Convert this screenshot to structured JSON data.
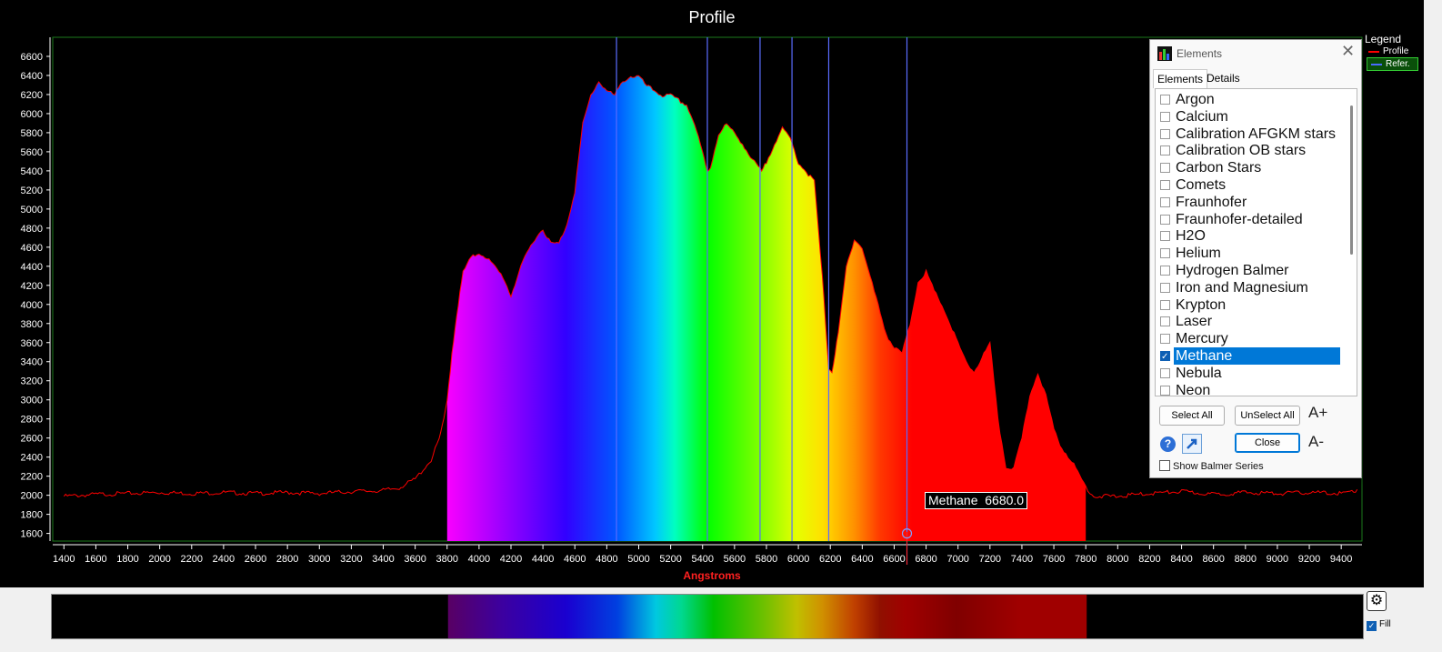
{
  "chart_data": {
    "type": "area",
    "title": "Profile",
    "xlabel": "Angstroms",
    "ylabel": "",
    "xlim": [
      1330,
      9530
    ],
    "ylim": [
      1520,
      6800
    ],
    "x_ticks": [
      1400,
      1600,
      1800,
      2000,
      2200,
      2400,
      2600,
      2800,
      3000,
      3200,
      3400,
      3600,
      3800,
      4000,
      4200,
      4400,
      4600,
      4800,
      5000,
      5200,
      5400,
      5600,
      5800,
      6000,
      6200,
      6400,
      6600,
      6800,
      7000,
      7200,
      7400,
      7600,
      7800,
      8000,
      8200,
      8400,
      8600,
      8800,
      9000,
      9200,
      9400
    ],
    "y_ticks": [
      1600,
      1800,
      2000,
      2200,
      2400,
      2600,
      2800,
      3000,
      3200,
      3400,
      3600,
      3800,
      4000,
      4200,
      4400,
      4600,
      4800,
      5000,
      5200,
      5400,
      5600,
      5800,
      6000,
      6200,
      6400,
      6600
    ],
    "fill_range": [
      3800,
      7800
    ],
    "series": [
      {
        "name": "Profile",
        "color": "#ff0000",
        "x": [
          1400,
          1600,
          1800,
          2000,
          2200,
          2400,
          2600,
          2800,
          3000,
          3200,
          3400,
          3500,
          3600,
          3650,
          3700,
          3750,
          3780,
          3800,
          3830,
          3860,
          3900,
          3950,
          4000,
          4050,
          4100,
          4150,
          4200,
          4250,
          4300,
          4350,
          4400,
          4450,
          4500,
          4550,
          4600,
          4650,
          4700,
          4750,
          4800,
          4850,
          4900,
          4950,
          5000,
          5050,
          5100,
          5150,
          5200,
          5250,
          5300,
          5350,
          5400,
          5430,
          5450,
          5500,
          5550,
          5600,
          5650,
          5700,
          5750,
          5770,
          5800,
          5850,
          5900,
          5950,
          6000,
          6050,
          6100,
          6150,
          6190,
          6210,
          6250,
          6300,
          6350,
          6400,
          6450,
          6500,
          6550,
          6600,
          6650,
          6700,
          6750,
          6800,
          6850,
          6900,
          6950,
          7000,
          7050,
          7100,
          7150,
          7200,
          7250,
          7300,
          7350,
          7400,
          7450,
          7500,
          7550,
          7600,
          7650,
          7700,
          7750,
          7800,
          7850,
          7900,
          8000,
          8200,
          8400,
          8600,
          8800,
          9000,
          9200,
          9400,
          9500
        ],
        "values": [
          2000,
          2020,
          2030,
          2040,
          2030,
          2040,
          2030,
          2040,
          2030,
          2050,
          2060,
          2090,
          2180,
          2280,
          2380,
          2600,
          2800,
          3000,
          3500,
          3900,
          4350,
          4500,
          4550,
          4500,
          4400,
          4300,
          4100,
          4350,
          4550,
          4700,
          4800,
          4650,
          4650,
          4850,
          5200,
          5900,
          6200,
          6350,
          6250,
          6200,
          6350,
          6400,
          6400,
          6300,
          6250,
          6200,
          6200,
          6150,
          6100,
          5900,
          5600,
          5400,
          5450,
          5800,
          5900,
          5800,
          5700,
          5550,
          5450,
          5400,
          5500,
          5700,
          5850,
          5750,
          5500,
          5400,
          5300,
          4300,
          3350,
          3300,
          3700,
          4400,
          4700,
          4600,
          4300,
          4000,
          3700,
          3550,
          3500,
          3800,
          4250,
          4350,
          4150,
          4000,
          3800,
          3600,
          3400,
          3300,
          3450,
          3600,
          2800,
          2300,
          2300,
          2600,
          3050,
          3300,
          3050,
          2700,
          2500,
          2400,
          2250,
          2100,
          2000,
          2000,
          2000,
          2030,
          2050,
          2020,
          2040,
          2030,
          2040,
          2030,
          2060
        ]
      }
    ],
    "reference_lines": [
      4861,
      5430,
      5760,
      5960,
      6190,
      6680
    ],
    "legend": {
      "title": "Legend",
      "entries": [
        {
          "name": "Profile",
          "color": "#ff0000"
        },
        {
          "name": "Refer.",
          "color": "#4a6bff"
        }
      ]
    },
    "annotation": {
      "label": "Methane",
      "value": "6680.0",
      "x": 6680
    }
  },
  "elements_dialog": {
    "title": "Elements",
    "tabs": [
      "Elements",
      "Details"
    ],
    "items": [
      {
        "label": "Argon",
        "checked": false
      },
      {
        "label": "Calcium",
        "checked": false
      },
      {
        "label": "Calibration AFGKM stars",
        "checked": false
      },
      {
        "label": "Calibration OB stars",
        "checked": false
      },
      {
        "label": "Carbon Stars",
        "checked": false
      },
      {
        "label": "Comets",
        "checked": false
      },
      {
        "label": "Fraunhofer",
        "checked": false
      },
      {
        "label": "Fraunhofer-detailed",
        "checked": false
      },
      {
        "label": "H2O",
        "checked": false
      },
      {
        "label": "Helium",
        "checked": false
      },
      {
        "label": "Hydrogen Balmer",
        "checked": false
      },
      {
        "label": "Iron and Magnesium",
        "checked": false
      },
      {
        "label": "Krypton",
        "checked": false
      },
      {
        "label": "Laser",
        "checked": false
      },
      {
        "label": "Mercury",
        "checked": false
      },
      {
        "label": "Methane",
        "checked": true
      },
      {
        "label": "Nebula",
        "checked": false
      },
      {
        "label": "Neon",
        "checked": false
      }
    ],
    "select_all": "Select All",
    "unselect_all": "UnSelect All",
    "close": "Close",
    "font_up": "A+",
    "font_down": "A-",
    "help": "?",
    "show_balmer": "Show Balmer Series"
  },
  "fill_label": "Fill"
}
